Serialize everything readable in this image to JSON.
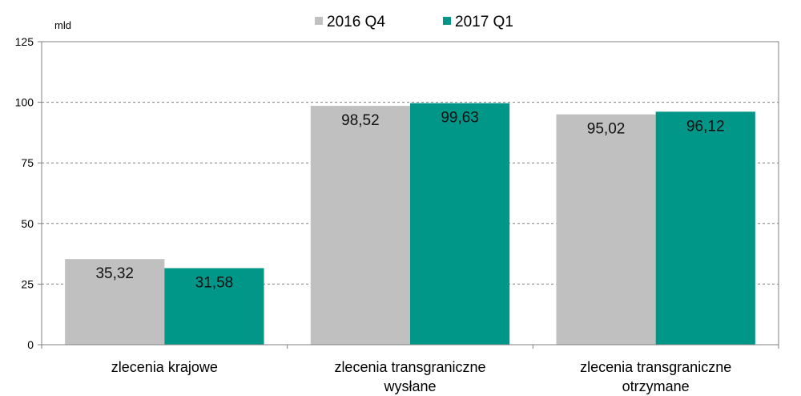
{
  "chart_data": {
    "type": "bar",
    "unit_label": "mld",
    "categories": [
      [
        "zlecenia krajowe"
      ],
      [
        "zlecenia transgraniczne",
        "wysłane"
      ],
      [
        "zlecenia transgraniczne",
        "otrzymane"
      ]
    ],
    "series": [
      {
        "name": "2016 Q4",
        "color": "#c0c0c0",
        "values": [
          35.32,
          98.52,
          95.02
        ],
        "labels": [
          "35,32",
          "98,52",
          "95,02"
        ]
      },
      {
        "name": "2017 Q1",
        "color": "#009688",
        "values": [
          31.58,
          99.63,
          96.12
        ],
        "labels": [
          "31,58",
          "99,63",
          "96,12"
        ]
      }
    ],
    "ylim": [
      0,
      125
    ],
    "yticks": [
      0,
      25,
      50,
      75,
      100,
      125
    ],
    "grid": true,
    "legend_position": "top"
  }
}
